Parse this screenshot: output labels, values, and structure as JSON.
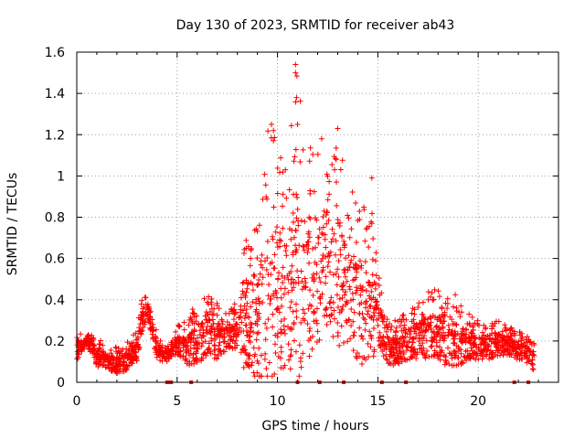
{
  "chart_data": {
    "type": "scatter",
    "title": "Day 130 of 2023, SRMTID for receiver ab43",
    "xlabel": "GPS time / hours",
    "ylabel": "SRMTID / TECUs",
    "xlim": [
      0,
      24
    ],
    "ylim": [
      0,
      1.6
    ],
    "x_ticks": [
      0,
      5,
      10,
      15,
      20
    ],
    "x_tick_labels": [
      "0",
      "5",
      "10",
      "15",
      "20"
    ],
    "y_ticks": [
      0,
      0.2,
      0.4,
      0.6,
      0.8,
      1.0,
      1.2,
      1.4,
      1.6
    ],
    "y_tick_labels": [
      "0",
      "0.2",
      "0.4",
      "0.6",
      "0.8",
      "1",
      "1.2",
      "1.4",
      "1.6"
    ],
    "grid": true,
    "marker": "plus",
    "series_color": "#ff0000",
    "envelope": {
      "description": "approximate typical (median) and upper envelope of SRMTID vs GPS hour",
      "x": [
        0.0,
        0.5,
        1.0,
        1.5,
        2.0,
        2.5,
        3.0,
        3.3,
        3.5,
        4.0,
        4.5,
        5.0,
        5.5,
        6.0,
        6.5,
        7.0,
        7.5,
        8.0,
        8.5,
        9.0,
        9.5,
        10.0,
        10.5,
        11.0,
        11.5,
        12.0,
        12.5,
        13.0,
        13.5,
        14.0,
        14.5,
        15.0,
        15.5,
        16.0,
        16.5,
        17.0,
        17.5,
        18.0,
        18.5,
        19.0,
        19.5,
        20.0,
        20.5,
        21.0,
        21.5,
        22.0,
        22.5,
        22.8
      ],
      "median": [
        0.15,
        0.2,
        0.12,
        0.1,
        0.08,
        0.1,
        0.15,
        0.3,
        0.35,
        0.15,
        0.12,
        0.18,
        0.15,
        0.18,
        0.22,
        0.2,
        0.22,
        0.22,
        0.25,
        0.28,
        0.35,
        0.4,
        0.4,
        0.45,
        0.45,
        0.5,
        0.5,
        0.5,
        0.4,
        0.35,
        0.35,
        0.3,
        0.15,
        0.15,
        0.18,
        0.2,
        0.22,
        0.22,
        0.2,
        0.18,
        0.18,
        0.17,
        0.17,
        0.18,
        0.18,
        0.15,
        0.13,
        0.1
      ],
      "upper": [
        0.25,
        0.24,
        0.22,
        0.18,
        0.17,
        0.2,
        0.25,
        0.46,
        0.4,
        0.25,
        0.18,
        0.28,
        0.3,
        0.4,
        0.42,
        0.4,
        0.35,
        0.4,
        0.75,
        0.85,
        1.25,
        1.2,
        1.1,
        1.55,
        1.2,
        1.2,
        1.0,
        1.23,
        0.95,
        0.9,
        0.99,
        0.6,
        0.3,
        0.3,
        0.35,
        0.4,
        0.45,
        0.45,
        0.49,
        0.4,
        0.35,
        0.3,
        0.3,
        0.3,
        0.28,
        0.25,
        0.22,
        0.2
      ]
    },
    "zero_markers_x": [
      4.5,
      4.6,
      4.7,
      5.7,
      11.0,
      12.1,
      13.3,
      15.2,
      16.4,
      21.8,
      22.5
    ],
    "outliers": [
      {
        "x": 10.9,
        "y": 1.54
      },
      {
        "x": 10.9,
        "y": 1.5
      },
      {
        "x": 10.95,
        "y": 1.38
      },
      {
        "x": 9.7,
        "y": 1.25
      },
      {
        "x": 9.8,
        "y": 1.22
      },
      {
        "x": 11.0,
        "y": 1.25
      },
      {
        "x": 13.0,
        "y": 1.23
      },
      {
        "x": 12.2,
        "y": 1.18
      },
      {
        "x": 14.7,
        "y": 0.99
      }
    ]
  }
}
